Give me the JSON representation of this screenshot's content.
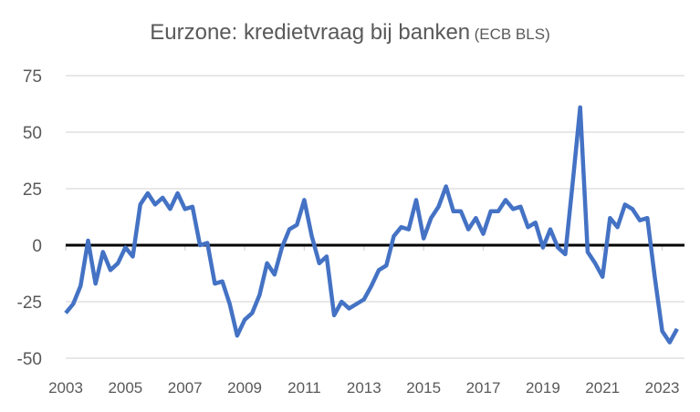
{
  "chart_data": {
    "type": "line",
    "title": "Eurzone: kredietvraag bij banken",
    "subtitle": "(ECB BLS)",
    "xlabel": "",
    "ylabel": "",
    "ylim": [
      -50,
      75
    ],
    "yticks": [
      75,
      50,
      25,
      0,
      -25,
      -50
    ],
    "xticks": [
      "2003",
      "2005",
      "2007",
      "2009",
      "2011",
      "2013",
      "2015",
      "2017",
      "2019",
      "2021",
      "2023"
    ],
    "x_start": "2003Q1",
    "frequency": "quarterly",
    "grid": true,
    "line_color": "#4472C4",
    "zero_line_color": "#000000",
    "series": [
      {
        "values": [
          -30,
          -26,
          -18,
          2,
          -17,
          -3,
          -11,
          -8,
          -1,
          -5,
          18,
          23,
          18,
          21,
          16,
          23,
          16,
          17,
          0,
          1,
          -17,
          -16,
          -26,
          -40,
          -33,
          -30,
          -22,
          -8,
          -13,
          -1,
          7,
          9,
          20,
          4,
          -8,
          -5,
          -31,
          -25,
          -28,
          -26,
          -24,
          -18,
          -11,
          -9,
          4,
          8,
          7,
          20,
          3,
          12,
          17,
          26,
          15,
          15,
          7,
          12,
          5,
          15,
          15,
          20,
          16,
          17,
          8,
          10,
          -1,
          7,
          -1,
          -4,
          28,
          61,
          -3,
          -8,
          -14,
          12,
          8,
          18,
          16,
          11,
          12,
          -14,
          -38,
          -43,
          -37
        ]
      }
    ]
  }
}
